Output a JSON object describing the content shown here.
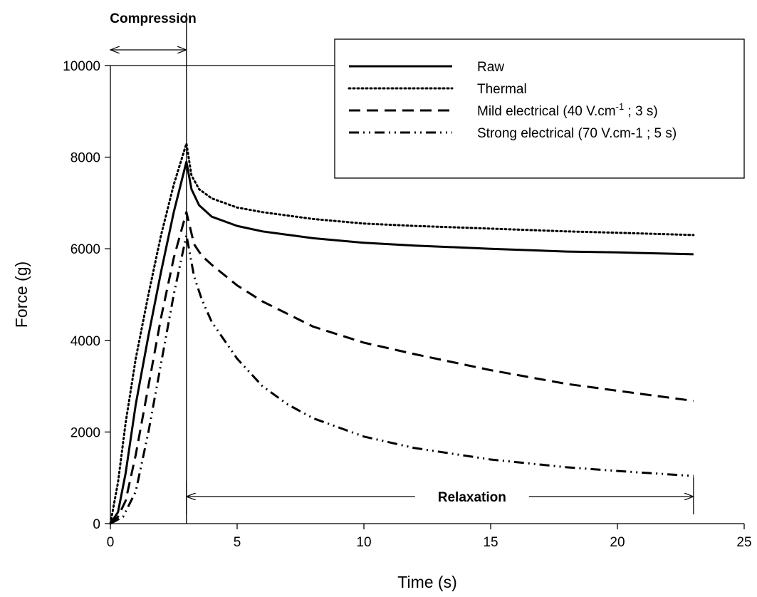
{
  "chart_data": {
    "type": "line",
    "xlabel": "Time (s)",
    "ylabel": "Force (g)",
    "xlim": [
      0,
      25
    ],
    "ylim": [
      0,
      10000
    ],
    "xticks": [
      0,
      5,
      10,
      15,
      20,
      25
    ],
    "yticks": [
      0,
      2000,
      4000,
      6000,
      8000,
      10000
    ],
    "grid": false,
    "legend_position": "top-right",
    "series": [
      {
        "name": "Raw",
        "style": "solid",
        "x": [
          0,
          0.3,
          0.6,
          1.0,
          1.5,
          2.0,
          2.5,
          3.0,
          3.2,
          3.5,
          4,
          5,
          6,
          8,
          10,
          12,
          15,
          18,
          20,
          23
        ],
        "y": [
          0,
          250,
          1100,
          2600,
          4100,
          5500,
          6800,
          7900,
          7300,
          6950,
          6700,
          6500,
          6380,
          6230,
          6130,
          6070,
          6000,
          5940,
          5920,
          5880
        ]
      },
      {
        "name": "Thermal",
        "style": "dotted",
        "x": [
          0,
          0.3,
          0.6,
          1.0,
          1.5,
          2.0,
          2.5,
          3.0,
          3.2,
          3.5,
          4,
          5,
          6,
          8,
          10,
          12,
          15,
          18,
          20,
          23
        ],
        "y": [
          0,
          900,
          2200,
          3600,
          5000,
          6300,
          7400,
          8300,
          7600,
          7300,
          7100,
          6900,
          6800,
          6650,
          6550,
          6500,
          6440,
          6380,
          6350,
          6300
        ]
      },
      {
        "name": "Mild electrical (40 V.cm",
        "name_sup": "-1",
        "name_suffix": " ; 3 s)",
        "style": "dashed",
        "x": [
          0,
          0.3,
          0.6,
          1.0,
          1.5,
          2.0,
          2.5,
          3.0,
          3.3,
          3.6,
          4,
          5,
          6,
          8,
          10,
          12,
          15,
          18,
          20,
          23
        ],
        "y": [
          0,
          150,
          500,
          1500,
          3000,
          4500,
          5800,
          6800,
          6100,
          5850,
          5650,
          5200,
          4850,
          4300,
          3950,
          3700,
          3350,
          3050,
          2900,
          2680
        ]
      },
      {
        "name": "Strong electrical (70 V.cm-1 ; 5 s)",
        "style": "dashdotdot",
        "x": [
          0,
          0.5,
          1.0,
          1.5,
          2.0,
          2.5,
          3.0,
          3.3,
          3.6,
          4,
          5,
          6,
          7,
          8,
          10,
          12,
          15,
          18,
          20,
          23
        ],
        "y": [
          0,
          150,
          700,
          2000,
          3500,
          5000,
          6300,
          5400,
          4900,
          4400,
          3600,
          3000,
          2600,
          2300,
          1900,
          1650,
          1400,
          1230,
          1150,
          1040
        ]
      }
    ],
    "annotations": {
      "compression": {
        "label": "Compression",
        "x_start": 0,
        "x_end": 3
      },
      "relaxation": {
        "label": "Relaxation",
        "x_start": 3,
        "x_end": 23,
        "y": 650
      },
      "vertical_line_x": 3,
      "horizontal_line_y": 10000
    }
  }
}
